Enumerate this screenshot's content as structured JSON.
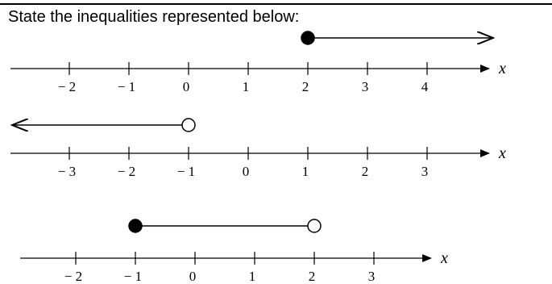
{
  "prompt": "State the inequalities represented below:",
  "axis_variable": "x",
  "colors": {
    "ink": "#000000",
    "open_fill": "#ffffff",
    "page": "#ffffff"
  },
  "number_lines": [
    {
      "ticks": [
        "− 2",
        "− 1",
        "0",
        "1",
        "2",
        "3",
        "4"
      ],
      "tick_values": [
        -2,
        -1,
        0,
        1,
        2,
        3,
        4
      ],
      "ray": {
        "endpoint": 2,
        "endpoint_style": "closed",
        "direction": "right"
      }
    },
    {
      "ticks": [
        "− 3",
        "− 2",
        "− 1",
        "0",
        "1",
        "2",
        "3"
      ],
      "tick_values": [
        -3,
        -2,
        -1,
        0,
        1,
        2,
        3
      ],
      "ray": {
        "endpoint": -1,
        "endpoint_style": "open",
        "direction": "left"
      }
    },
    {
      "ticks": [
        "− 2",
        "− 1",
        "0",
        "1",
        "2",
        "3"
      ],
      "tick_values": [
        -2,
        -1,
        0,
        1,
        2,
        3
      ],
      "segment": {
        "start": -1,
        "start_style": "closed",
        "end": 2,
        "end_style": "open"
      }
    }
  ]
}
